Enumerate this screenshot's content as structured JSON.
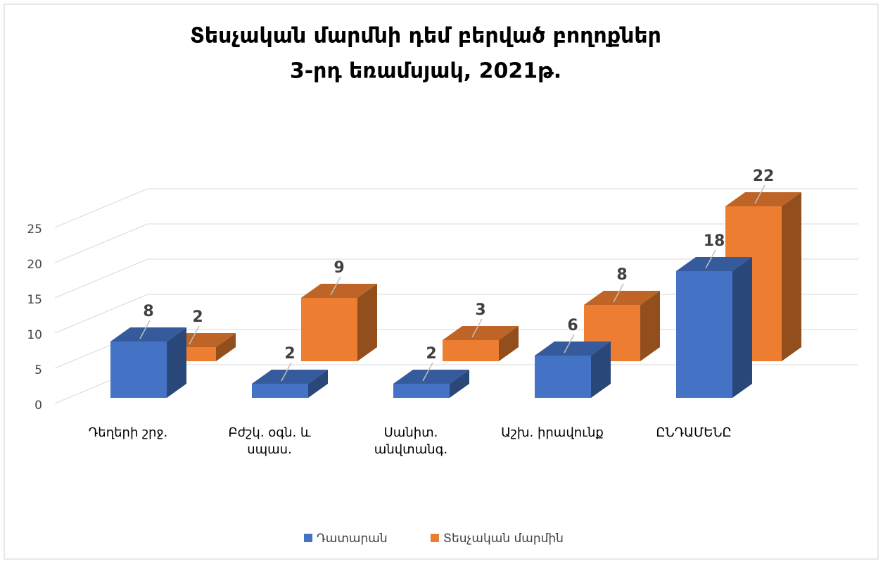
{
  "chart_data": {
    "type": "bar3d",
    "title": [
      "Տեսչական մարմնի դեմ բերված բողոքներ",
      "3-րդ եռամսյակ, 2021թ."
    ],
    "categories": [
      "Դեղերի շրջ.",
      "Բժշկ. օգն. և սպաս.",
      "Սանիտ. անվտանգ.",
      "Աշխ. իրավունք",
      "ԸՆԴԱՄԵՆԸ"
    ],
    "series": [
      {
        "name": "Դատարան",
        "color": "#4472c4",
        "values": [
          8,
          2,
          2,
          6,
          18
        ]
      },
      {
        "name": "Տեսչական մարմին",
        "color": "#ed7d31",
        "values": [
          2,
          9,
          3,
          8,
          22
        ]
      }
    ],
    "ylim": [
      0,
      25
    ],
    "yticks": [
      0,
      5,
      10,
      15,
      20,
      25
    ],
    "grid": true,
    "legend": "bottom"
  }
}
